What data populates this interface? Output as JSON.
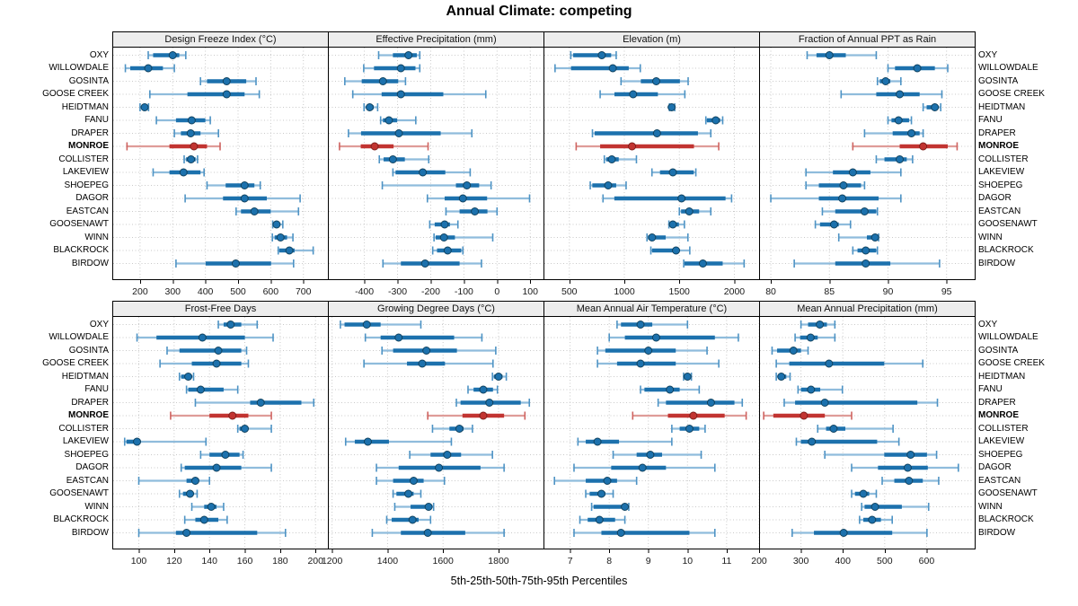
{
  "title": "Annual Climate: competing",
  "footer": "5th-25th-50th-75th-95th Percentiles",
  "highlight_site": "MONROE",
  "sites": [
    "OXY",
    "WILLOWDALE",
    "GOSINTA",
    "GOOSE CREEK",
    "HEIDTMAN",
    "FANU",
    "DRAPER",
    "MONROE",
    "COLLISTER",
    "LAKEVIEW",
    "SHOEPEG",
    "DAGOR",
    "EASTCAN",
    "GOOSENAWT",
    "WINN",
    "BLACKROCK",
    "BIRDOW"
  ],
  "colors": {
    "normal": "#1c71ad",
    "normal_mid": "#4e93c4",
    "normal_light": "#8fbcdc",
    "normal_dot_edge": "#10425f",
    "highlight": "#c23431",
    "highlight_mid": "#cf6360",
    "highlight_light": "#df9c99",
    "highlight_dot_edge": "#7e1f1c",
    "grid": "#c9c9c9",
    "strip_bg": "#ededed",
    "border": "#000000"
  },
  "chart_data": [
    {
      "type": "dotplot-percentile-ranges",
      "title": "Design Freeze Index (°C)",
      "percentile_levels": [
        5,
        25,
        50,
        75,
        95
      ],
      "xlim": [
        115,
        775
      ],
      "ticks": [
        200,
        300,
        400,
        500,
        600,
        700
      ],
      "values": [
        [
          225,
          240,
          300,
          320,
          340
        ],
        [
          155,
          170,
          225,
          270,
          305
        ],
        [
          385,
          405,
          465,
          525,
          555
        ],
        [
          230,
          345,
          465,
          520,
          565
        ],
        [
          200,
          206,
          214,
          219,
          226
        ],
        [
          250,
          310,
          358,
          400,
          415
        ],
        [
          305,
          325,
          355,
          385,
          440
        ],
        [
          160,
          290,
          365,
          405,
          445
        ],
        [
          335,
          341,
          356,
          370,
          376
        ],
        [
          240,
          290,
          333,
          385,
          396
        ],
        [
          405,
          462,
          520,
          550,
          568
        ],
        [
          338,
          454,
          520,
          588,
          690
        ],
        [
          494,
          509,
          550,
          600,
          685
        ],
        [
          606,
          612,
          618,
          625,
          637
        ],
        [
          605,
          612,
          630,
          650,
          668
        ],
        [
          623,
          626,
          657,
          673,
          730
        ],
        [
          310,
          401,
          493,
          601,
          670
        ]
      ]
    },
    {
      "type": "dotplot-percentile-ranges",
      "title": "Effective Precipitation (mm)",
      "percentile_levels": [
        5,
        25,
        50,
        75,
        95
      ],
      "xlim": [
        -510,
        140
      ],
      "ticks": [
        -400,
        -300,
        -200,
        -100,
        0,
        100
      ],
      "values": [
        [
          -357,
          -314,
          -267,
          -242,
          -233
        ],
        [
          -402,
          -371,
          -290,
          -246,
          -233
        ],
        [
          -459,
          -408,
          -344,
          -298,
          -276
        ],
        [
          -435,
          -348,
          -290,
          -162,
          -34
        ],
        [
          -401,
          -393,
          -384,
          -372,
          -360
        ],
        [
          -351,
          -344,
          -326,
          -301,
          -245
        ],
        [
          -448,
          -410,
          -296,
          -170,
          -76
        ],
        [
          -475,
          -411,
          -369,
          -312,
          -208
        ],
        [
          -355,
          -342,
          -314,
          -278,
          -206
        ],
        [
          -314,
          -306,
          -224,
          -156,
          -81
        ],
        [
          -346,
          -124,
          -91,
          -54,
          -18
        ],
        [
          -210,
          -158,
          -103,
          -30,
          98
        ],
        [
          -154,
          -113,
          -67,
          -29,
          0
        ],
        [
          -203,
          -188,
          -158,
          -142,
          -118
        ],
        [
          -190,
          -185,
          -160,
          -127,
          -13
        ],
        [
          -194,
          -181,
          -149,
          -108,
          -103
        ],
        [
          -344,
          -290,
          -217,
          -113,
          -47
        ]
      ]
    },
    {
      "type": "dotplot-percentile-ranges",
      "title": "Elevation (m)",
      "percentile_levels": [
        5,
        25,
        50,
        75,
        95
      ],
      "xlim": [
        265,
        2225
      ],
      "ticks": [
        500,
        1000,
        1500,
        2000
      ],
      "values": [
        [
          513,
          535,
          795,
          880,
          926
        ],
        [
          370,
          515,
          895,
          1040,
          1145
        ],
        [
          970,
          1150,
          1290,
          1505,
          1580
        ],
        [
          780,
          910,
          1080,
          1305,
          1550
        ],
        [
          1410,
          1420,
          1430,
          1441,
          1458
        ],
        [
          1741,
          1750,
          1831,
          1871,
          1894
        ],
        [
          710,
          730,
          1297,
          1669,
          1786
        ],
        [
          562,
          780,
          1070,
          1633,
          1858
        ],
        [
          818,
          835,
          886,
          949,
          1110
        ],
        [
          1251,
          1324,
          1441,
          1631,
          1650
        ],
        [
          690,
          709,
          853,
          926,
          1016
        ],
        [
          806,
          909,
          1520,
          1920,
          1975
        ],
        [
          1500,
          1516,
          1590,
          1680,
          1786
        ],
        [
          1405,
          1411,
          1441,
          1496,
          1546
        ],
        [
          1206,
          1215,
          1252,
          1376,
          1578
        ],
        [
          1241,
          1252,
          1470,
          1497,
          1595
        ],
        [
          1540,
          1547,
          1714,
          1894,
          2089
        ]
      ]
    },
    {
      "type": "dotplot-percentile-ranges",
      "title": "Fraction of Annual PPT as Rain",
      "percentile_levels": [
        5,
        25,
        50,
        75,
        95
      ],
      "xlim": [
        79.0,
        97.4
      ],
      "ticks": [
        80,
        85,
        90,
        95
      ],
      "values": [
        [
          83.1,
          83.9,
          85.0,
          86.4,
          89.0
        ],
        [
          90.0,
          90.6,
          92.5,
          94.0,
          95.1
        ],
        [
          89.1,
          89.3,
          89.8,
          90.2,
          91.1
        ],
        [
          86.0,
          89.0,
          91.0,
          92.7,
          94.6
        ],
        [
          93.0,
          93.3,
          94.0,
          94.3,
          94.5
        ],
        [
          90.0,
          90.3,
          90.9,
          91.8,
          92.0
        ],
        [
          88.0,
          90.4,
          92.0,
          92.7,
          93.0
        ],
        [
          87.0,
          91.0,
          93.0,
          95.1,
          95.9
        ],
        [
          89.0,
          89.7,
          91.0,
          91.6,
          92.1
        ],
        [
          83.0,
          85.3,
          87.0,
          88.5,
          91.1
        ],
        [
          83.0,
          84.1,
          86.2,
          87.7,
          88.0
        ],
        [
          80.0,
          84.1,
          86.1,
          89.2,
          91.1
        ],
        [
          84.4,
          85.5,
          88.0,
          89.0,
          89.1
        ],
        [
          83.8,
          84.2,
          85.4,
          85.8,
          86.8
        ],
        [
          85.8,
          88.2,
          88.9,
          89.1,
          89.2
        ],
        [
          87.0,
          87.4,
          88.1,
          89.0,
          89.1
        ],
        [
          82.0,
          85.5,
          88.1,
          90.2,
          94.4
        ]
      ]
    },
    {
      "type": "dotplot-percentile-ranges",
      "title": "Frost-Free Days",
      "percentile_levels": [
        5,
        25,
        50,
        75,
        95
      ],
      "xlim": [
        85,
        207
      ],
      "ticks": [
        100,
        120,
        140,
        160,
        180,
        200
      ],
      "values": [
        [
          145,
          148,
          152,
          158,
          167
        ],
        [
          99,
          110,
          136,
          160,
          176
        ],
        [
          116,
          123,
          145,
          158,
          161
        ],
        [
          112,
          130,
          144,
          158,
          162
        ],
        [
          123,
          124,
          128,
          130,
          131
        ],
        [
          127,
          128,
          135,
          148,
          156
        ],
        [
          132,
          163,
          169,
          192,
          199
        ],
        [
          118,
          140,
          153,
          162,
          175
        ],
        [
          156,
          157,
          160,
          162,
          175
        ],
        [
          92,
          93,
          99,
          101,
          138
        ],
        [
          135,
          140,
          149,
          157,
          159
        ],
        [
          124,
          126,
          144,
          158,
          175
        ],
        [
          100,
          127,
          132,
          134,
          140
        ],
        [
          123,
          125,
          129,
          131,
          133
        ],
        [
          130,
          137,
          141,
          144,
          148
        ],
        [
          126,
          132,
          137,
          145,
          150
        ],
        [
          100,
          121,
          127,
          167,
          183
        ]
      ]
    },
    {
      "type": "dotplot-percentile-ranges",
      "title": "Growing Degree Days (°C)",
      "percentile_levels": [
        5,
        25,
        50,
        75,
        95
      ],
      "xlim": [
        1185,
        1962
      ],
      "ticks": [
        1200,
        1400,
        1600,
        1800
      ],
      "values": [
        [
          1230,
          1245,
          1325,
          1375,
          1520
        ],
        [
          1320,
          1375,
          1440,
          1640,
          1740
        ],
        [
          1380,
          1420,
          1540,
          1650,
          1790
        ],
        [
          1315,
          1470,
          1525,
          1607,
          1780
        ],
        [
          1778,
          1783,
          1800,
          1814,
          1828
        ],
        [
          1690,
          1710,
          1745,
          1780,
          1796
        ],
        [
          1648,
          1663,
          1767,
          1880,
          1911
        ],
        [
          1545,
          1670,
          1745,
          1820,
          1895
        ],
        [
          1562,
          1623,
          1659,
          1674,
          1706
        ],
        [
          1249,
          1282,
          1329,
          1405,
          1630
        ],
        [
          1480,
          1555,
          1615,
          1665,
          1778
        ],
        [
          1360,
          1440,
          1585,
          1735,
          1820
        ],
        [
          1360,
          1420,
          1494,
          1530,
          1605
        ],
        [
          1420,
          1432,
          1475,
          1494,
          1520
        ],
        [
          1426,
          1483,
          1548,
          1558,
          1566
        ],
        [
          1397,
          1415,
          1490,
          1512,
          1555
        ],
        [
          1345,
          1448,
          1545,
          1680,
          1820
        ]
      ]
    },
    {
      "type": "dotplot-percentile-ranges",
      "title": "Mean Annual Air Temperature (°C)",
      "percentile_levels": [
        5,
        25,
        50,
        75,
        95
      ],
      "xlim": [
        6.32,
        11.83
      ],
      "ticks": [
        7,
        8,
        9,
        10,
        11
      ],
      "values": [
        [
          8.2,
          8.3,
          8.8,
          9.1,
          10.0
        ],
        [
          8.0,
          8.4,
          9.2,
          10.7,
          11.3
        ],
        [
          7.7,
          7.9,
          9.0,
          9.7,
          10.5
        ],
        [
          7.7,
          8.2,
          8.8,
          9.7,
          10.8
        ],
        [
          9.9,
          9.95,
          10.0,
          10.05,
          10.1
        ],
        [
          8.8,
          8.9,
          9.55,
          9.8,
          10.3
        ],
        [
          9.25,
          9.45,
          10.6,
          11.2,
          11.4
        ],
        [
          8.6,
          9.5,
          10.15,
          10.95,
          11.5
        ],
        [
          9.6,
          9.8,
          10.05,
          10.3,
          10.45
        ],
        [
          7.2,
          7.4,
          7.7,
          8.25,
          9.6
        ],
        [
          8.1,
          8.7,
          9.05,
          9.35,
          10.35
        ],
        [
          7.1,
          8.05,
          8.85,
          9.45,
          10.7
        ],
        [
          6.6,
          7.4,
          7.95,
          8.2,
          8.7
        ],
        [
          7.4,
          7.5,
          7.8,
          7.9,
          8.1
        ],
        [
          7.55,
          7.6,
          8.4,
          8.45,
          8.5
        ],
        [
          7.25,
          7.45,
          7.75,
          8.15,
          8.4
        ],
        [
          7.1,
          7.8,
          8.3,
          10.05,
          10.7
        ]
      ]
    },
    {
      "type": "dotplot-percentile-ranges",
      "title": "Mean Annual Precipitation (mm)",
      "percentile_levels": [
        5,
        25,
        50,
        75,
        95
      ],
      "xlim": [
        200,
        715
      ],
      "ticks": [
        200,
        300,
        400,
        500,
        600
      ],
      "values": [
        [
          300,
          317,
          345,
          362,
          381
        ],
        [
          286,
          298,
          323,
          340,
          381
        ],
        [
          231,
          243,
          282,
          300,
          317
        ],
        [
          241,
          272,
          367,
          499,
          591
        ],
        [
          241,
          245,
          253,
          265,
          274
        ],
        [
          293,
          300,
          324,
          346,
          399
        ],
        [
          260,
          286,
          357,
          578,
          626
        ],
        [
          211,
          234,
          307,
          357,
          421
        ],
        [
          340,
          360,
          378,
          406,
          520
        ],
        [
          289,
          300,
          326,
          482,
          534
        ],
        [
          357,
          499,
          562,
          601,
          624
        ],
        [
          421,
          484,
          555,
          603,
          676
        ],
        [
          494,
          523,
          558,
          591,
          629
        ],
        [
          421,
          429,
          449,
          463,
          480
        ],
        [
          445,
          452,
          477,
          541,
          605
        ],
        [
          440,
          449,
          470,
          491,
          518
        ],
        [
          279,
          331,
          402,
          518,
          601
        ]
      ]
    }
  ]
}
